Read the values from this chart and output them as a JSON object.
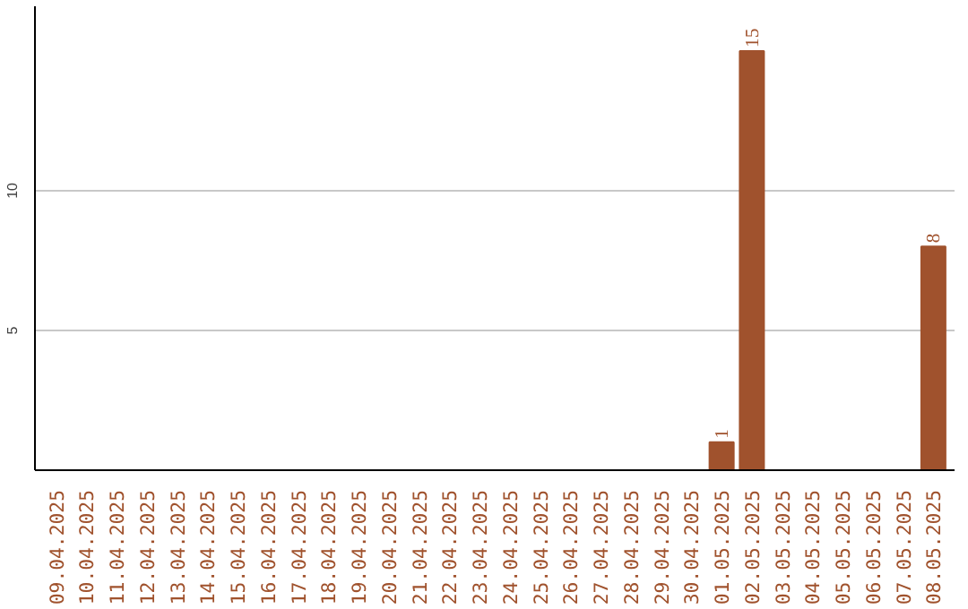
{
  "chart_data": {
    "type": "bar",
    "categories": [
      "09.04.2025",
      "10.04.2025",
      "11.04.2025",
      "12.04.2025",
      "13.04.2025",
      "14.04.2025",
      "15.04.2025",
      "16.04.2025",
      "17.04.2025",
      "18.04.2025",
      "19.04.2025",
      "20.04.2025",
      "21.04.2025",
      "22.04.2025",
      "23.04.2025",
      "24.04.2025",
      "25.04.2025",
      "26.04.2025",
      "27.04.2025",
      "28.04.2025",
      "29.04.2025",
      "30.04.2025",
      "01.05.2025",
      "02.05.2025",
      "03.05.2025",
      "04.05.2025",
      "05.05.2025",
      "06.05.2025",
      "07.05.2025",
      "08.05.2025"
    ],
    "values": [
      0,
      0,
      0,
      0,
      0,
      0,
      0,
      0,
      0,
      0,
      0,
      0,
      0,
      0,
      0,
      0,
      0,
      0,
      0,
      0,
      0,
      0,
      1,
      15,
      0,
      0,
      0,
      0,
      0,
      8
    ],
    "value_labels": [
      null,
      null,
      null,
      null,
      null,
      null,
      null,
      null,
      null,
      null,
      null,
      null,
      null,
      null,
      null,
      null,
      null,
      null,
      null,
      null,
      null,
      null,
      "1",
      "15",
      null,
      null,
      null,
      null,
      null,
      "8"
    ],
    "color": "#a0522d",
    "ylim": [
      0,
      16.6
    ],
    "yticks": [
      5,
      10
    ],
    "grid": "y"
  }
}
